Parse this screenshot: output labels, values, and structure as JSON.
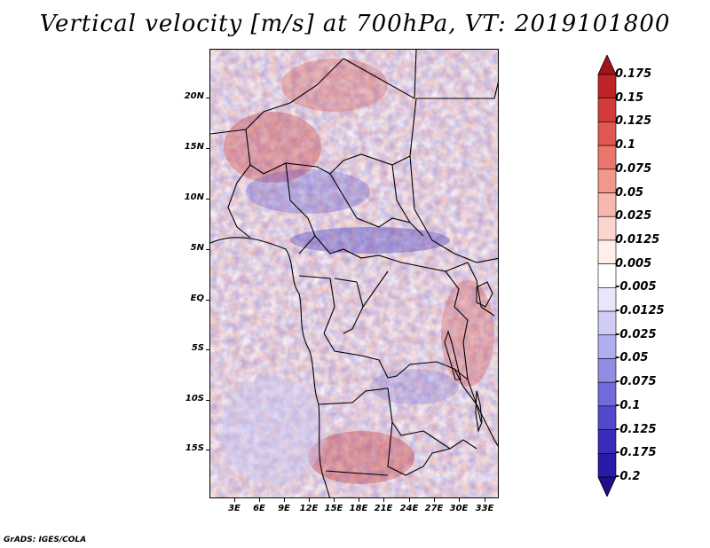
{
  "title": "Vertical velocity [m/s] at 700hPa, VT: 2019101800",
  "footer": "GrADS: IGES/COLA",
  "lat_labels": [
    "20N",
    "15N",
    "10N",
    "5N",
    "EQ",
    "5S",
    "10S",
    "15S"
  ],
  "lon_labels": [
    "3E",
    "6E",
    "9E",
    "12E",
    "15E",
    "18E",
    "21E",
    "24E",
    "27E",
    "30E",
    "33E"
  ],
  "colorbar": {
    "levels": [
      "0.175",
      "0.15",
      "0.125",
      "0.1",
      "0.075",
      "0.05",
      "0.025",
      "0.0125",
      "0.005",
      "-0.005",
      "-0.0125",
      "-0.025",
      "-0.05",
      "-0.075",
      "-0.1",
      "-0.125",
      "-0.175",
      "-0.2"
    ],
    "colors": [
      "#a0141e",
      "#be2328",
      "#d23c37",
      "#e0584f",
      "#eb766b",
      "#f2978c",
      "#f7b7ad",
      "#fbd5ce",
      "#ffeeea",
      "#ffffff",
      "#e8e6fb",
      "#cfccf5",
      "#b2adee",
      "#928ce5",
      "#726bdb",
      "#5349cd",
      "#3a2dbb",
      "#2a1aa5",
      "#1d0f8a"
    ]
  },
  "colors": {
    "positive_accent": "#c41e24",
    "negative_accent": "#2a1aa5"
  }
}
